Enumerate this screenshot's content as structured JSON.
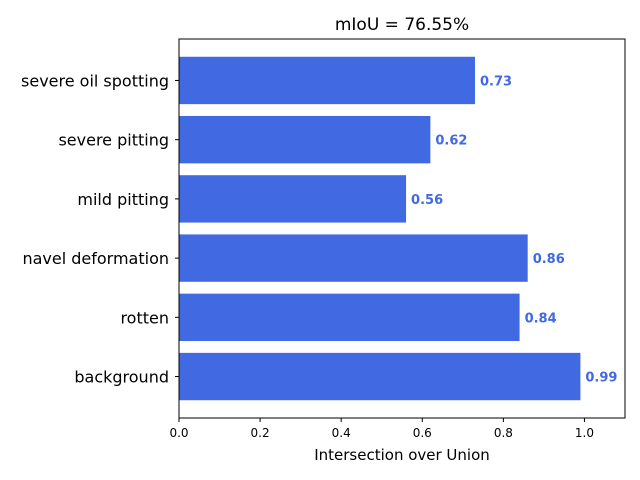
{
  "chart_data": {
    "type": "bar",
    "orientation": "horizontal",
    "title": "mIoU = 76.55%",
    "xlabel": "Intersection over Union",
    "ylabel": "",
    "categories": [
      "background",
      "rotten",
      "navel deformation",
      "mild pitting",
      "severe pitting",
      "severe oil spotting"
    ],
    "values": [
      0.99,
      0.84,
      0.86,
      0.56,
      0.62,
      0.73
    ],
    "value_labels": [
      "0.99",
      "0.84",
      "0.86",
      "0.56",
      "0.62",
      "0.73"
    ],
    "xlim": [
      0,
      1.1
    ],
    "xticks": [
      0.0,
      0.2,
      0.4,
      0.6,
      0.8,
      1.0
    ],
    "xtick_labels": [
      "0.0",
      "0.2",
      "0.4",
      "0.6",
      "0.8",
      "1.0"
    ],
    "grid": false,
    "bar_color": "#4169e1",
    "label_color": "#4169e1"
  }
}
